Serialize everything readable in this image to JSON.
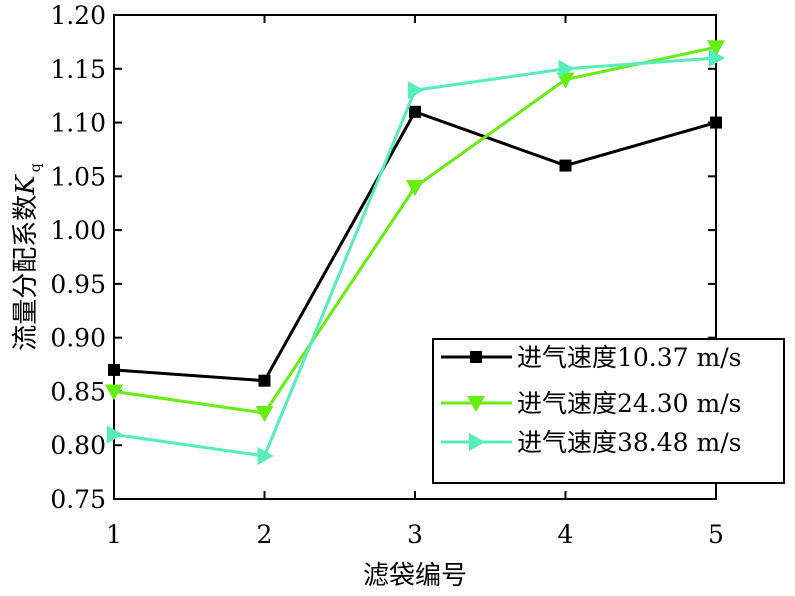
{
  "chart_data": {
    "type": "line",
    "x": [
      1,
      2,
      3,
      4,
      5
    ],
    "xlabel": "滤袋编号",
    "ylabel": "流量分配系数",
    "ylabel_symbol": "K",
    "ylabel_subscript": "q",
    "xlim": [
      1,
      5
    ],
    "ylim": [
      0.75,
      1.2
    ],
    "xticks": [
      "1",
      "2",
      "3",
      "4",
      "5"
    ],
    "yticks": [
      "0.75",
      "0.80",
      "0.85",
      "0.90",
      "0.95",
      "1.00",
      "1.05",
      "1.10",
      "1.15",
      "1.20"
    ],
    "grid": false,
    "legend_position": "bottom-right",
    "series": [
      {
        "name": "进气速度10.37 m/s",
        "values": [
          0.87,
          0.86,
          1.11,
          1.06,
          1.1
        ],
        "color": "#000000",
        "marker": "square"
      },
      {
        "name": "进气速度24.30 m/s",
        "values": [
          0.85,
          0.83,
          1.04,
          1.14,
          1.17
        ],
        "color": "#66ee11",
        "marker": "triangle-down"
      },
      {
        "name": "进气速度38.48 m/s",
        "values": [
          0.81,
          0.79,
          1.13,
          1.15,
          1.16
        ],
        "color": "#55eebb",
        "marker": "triangle-right"
      }
    ]
  }
}
